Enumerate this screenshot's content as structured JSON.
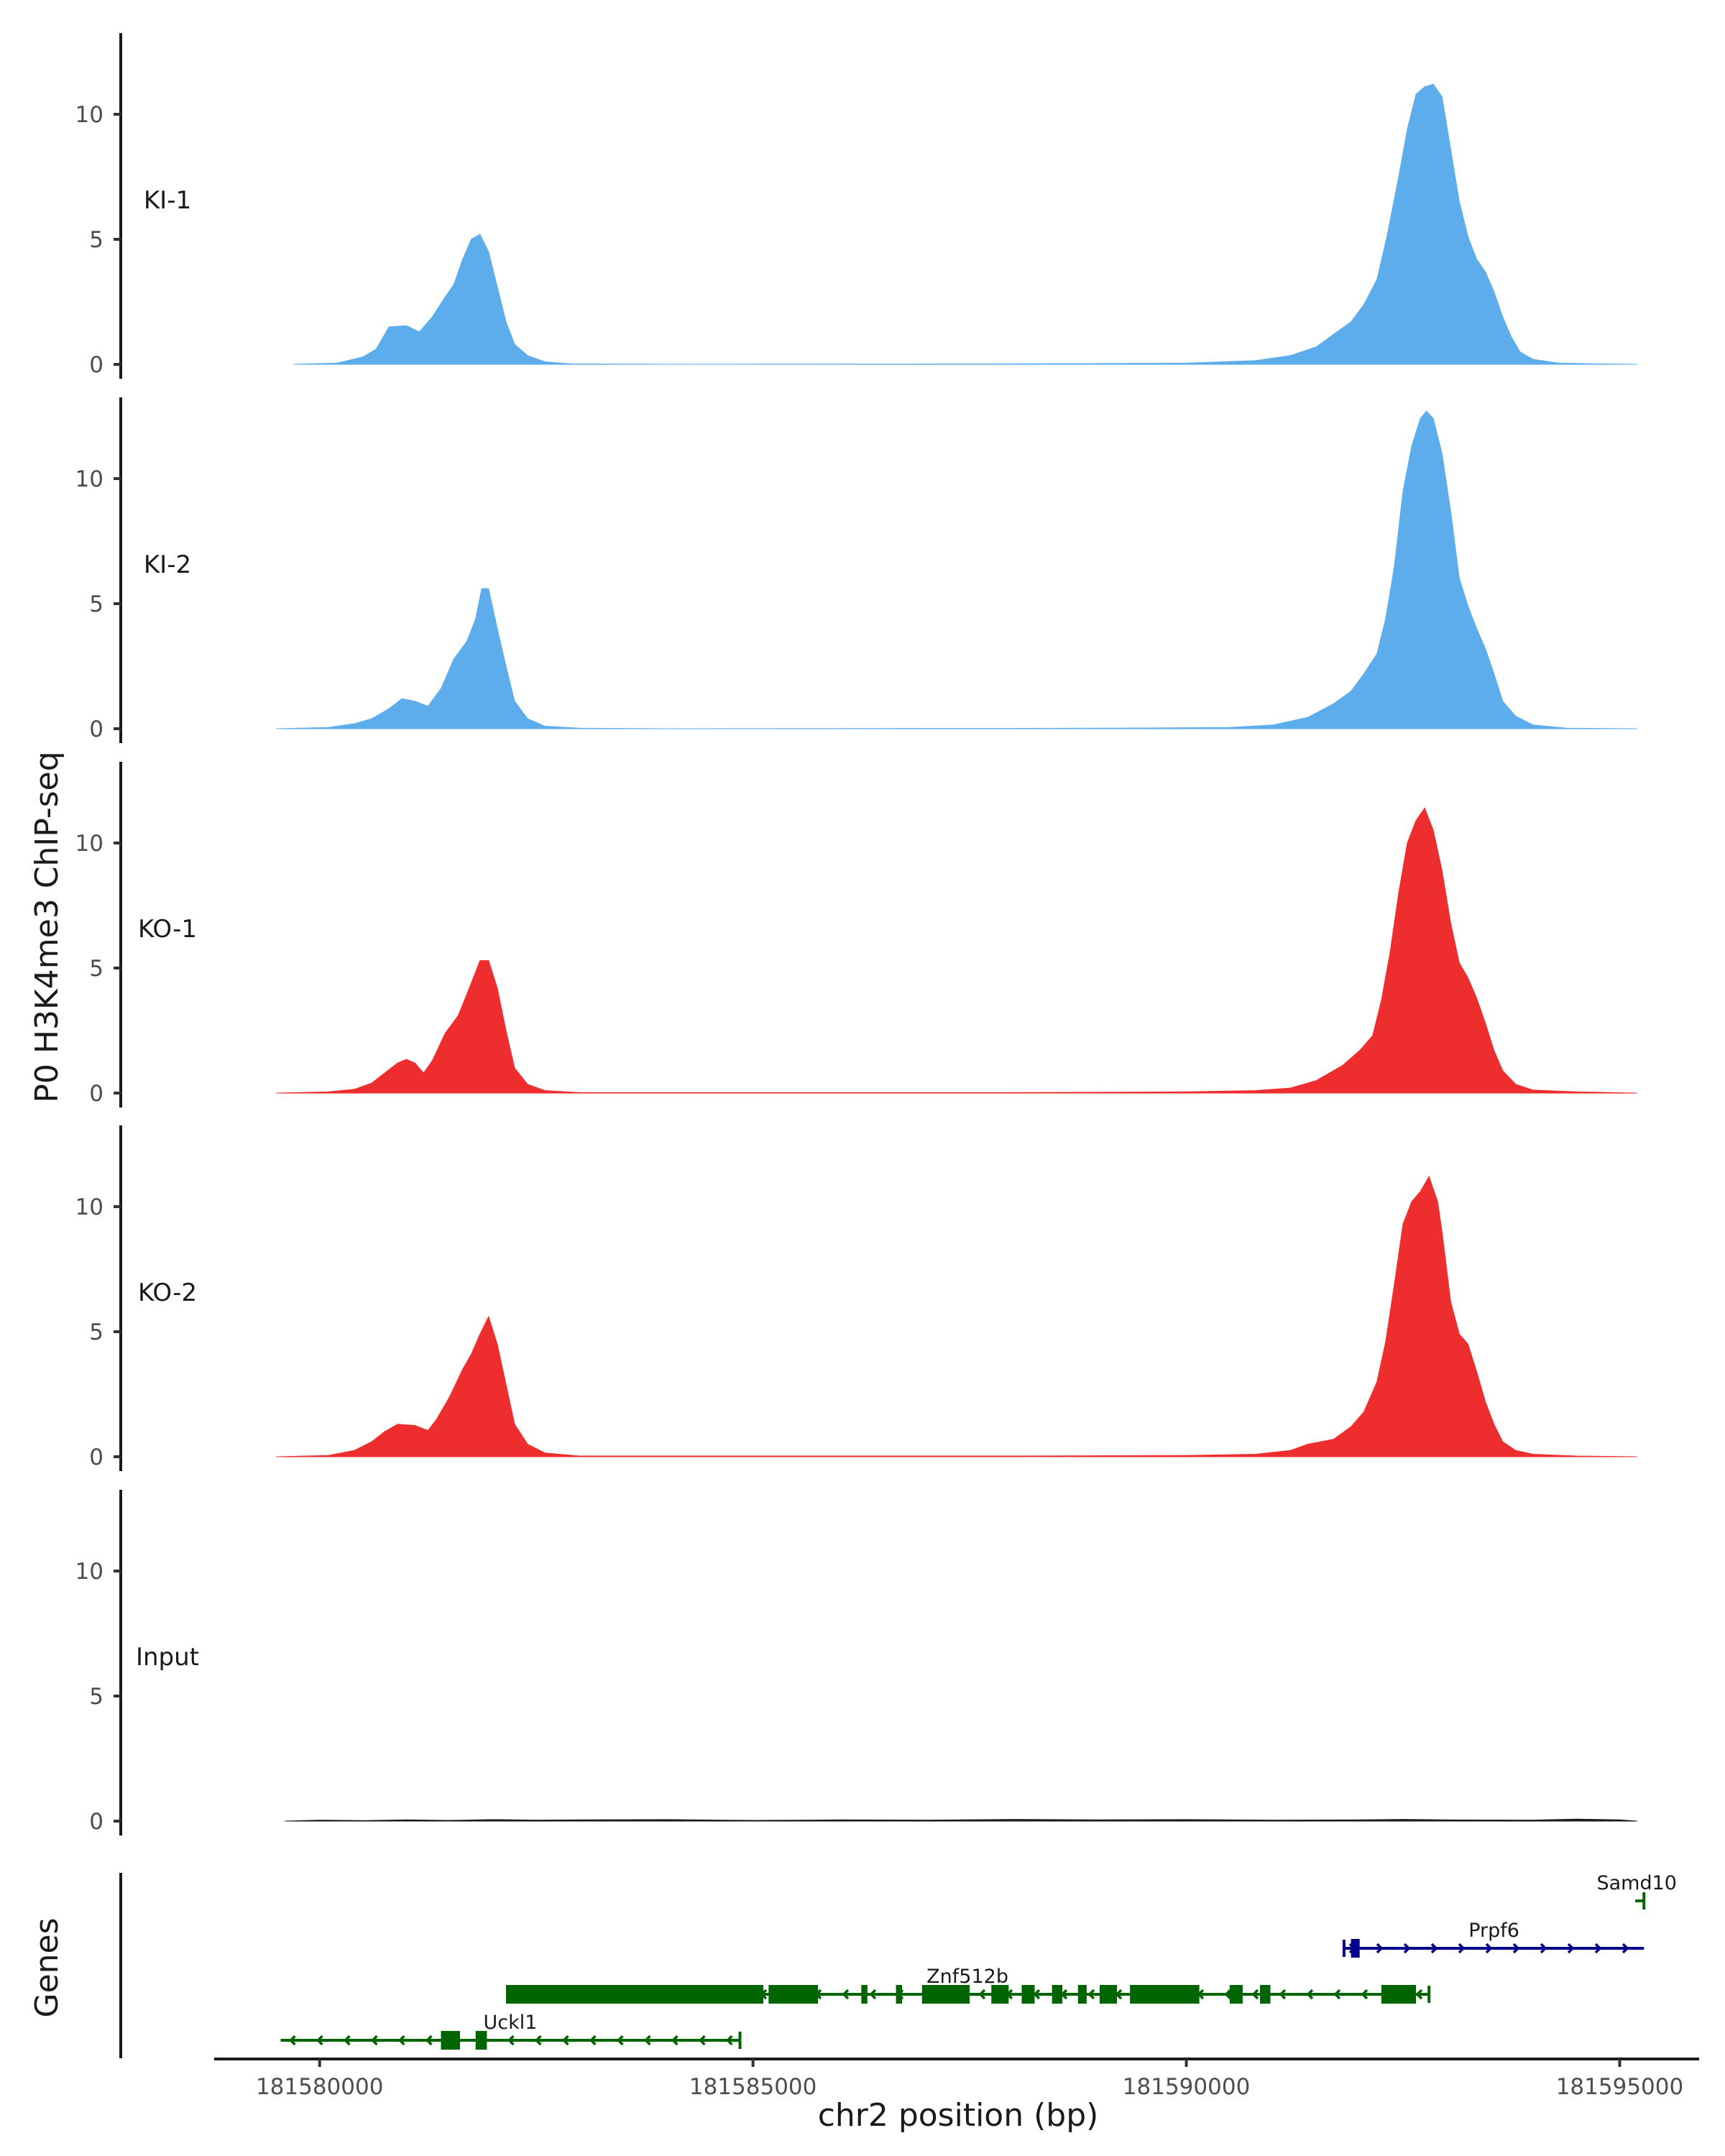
{
  "chart_data": {
    "type": "area",
    "chromosome": "chr2",
    "ylabel": "P0 H3K4me3 ChIP-seq",
    "xlabel": "chr2 position (bp)",
    "genes_label": "Genes",
    "xlim": [
      181578800,
      181595900
    ],
    "ylim": [
      0,
      13.3
    ],
    "yticks": [
      0,
      5,
      10
    ],
    "xticks": [
      181580000,
      181585000,
      181590000,
      181595000
    ],
    "tracks": [
      {
        "name": "KI-1",
        "color": "#5daded",
        "points": [
          [
            181579700,
            0
          ],
          [
            181580200,
            0.05
          ],
          [
            181580500,
            0.3
          ],
          [
            181580650,
            0.6
          ],
          [
            181580800,
            1.5
          ],
          [
            181581000,
            1.55
          ],
          [
            181581150,
            1.3
          ],
          [
            181581300,
            1.9
          ],
          [
            181581450,
            2.7
          ],
          [
            181581550,
            3.2
          ],
          [
            181581650,
            4.2
          ],
          [
            181581750,
            5.0
          ],
          [
            181581850,
            5.2
          ],
          [
            181581950,
            4.5
          ],
          [
            181582050,
            3.1
          ],
          [
            181582150,
            1.7
          ],
          [
            181582250,
            0.8
          ],
          [
            181582400,
            0.35
          ],
          [
            181582600,
            0.1
          ],
          [
            181582900,
            0.02
          ],
          [
            181584000,
            0
          ],
          [
            181588000,
            0.02
          ],
          [
            181590000,
            0.05
          ],
          [
            181590800,
            0.15
          ],
          [
            181591200,
            0.35
          ],
          [
            181591500,
            0.7
          ],
          [
            181591700,
            1.2
          ],
          [
            181591900,
            1.7
          ],
          [
            181592050,
            2.4
          ],
          [
            181592200,
            3.4
          ],
          [
            181592320,
            5.2
          ],
          [
            181592450,
            7.5
          ],
          [
            181592550,
            9.4
          ],
          [
            181592650,
            10.8
          ],
          [
            181592750,
            11.1
          ],
          [
            181592850,
            11.2
          ],
          [
            181592950,
            10.7
          ],
          [
            181593050,
            8.6
          ],
          [
            181593150,
            6.5
          ],
          [
            181593250,
            5.1
          ],
          [
            181593350,
            4.2
          ],
          [
            181593450,
            3.7
          ],
          [
            181593550,
            2.9
          ],
          [
            181593650,
            1.9
          ],
          [
            181593750,
            1.1
          ],
          [
            181593850,
            0.5
          ],
          [
            181594000,
            0.2
          ],
          [
            181594300,
            0.05
          ],
          [
            181594700,
            0.02
          ],
          [
            181595200,
            0
          ]
        ]
      },
      {
        "name": "KI-2",
        "color": "#5daded",
        "points": [
          [
            181579500,
            0
          ],
          [
            181580100,
            0.05
          ],
          [
            181580400,
            0.2
          ],
          [
            181580600,
            0.4
          ],
          [
            181580800,
            0.8
          ],
          [
            181580950,
            1.2
          ],
          [
            181581100,
            1.1
          ],
          [
            181581250,
            0.9
          ],
          [
            181581400,
            1.6
          ],
          [
            181581550,
            2.8
          ],
          [
            181581700,
            3.5
          ],
          [
            181581800,
            4.4
          ],
          [
            181581870,
            5.6
          ],
          [
            181581950,
            5.6
          ],
          [
            181582050,
            4.0
          ],
          [
            181582150,
            2.5
          ],
          [
            181582250,
            1.1
          ],
          [
            181582400,
            0.4
          ],
          [
            181582600,
            0.1
          ],
          [
            181583000,
            0.02
          ],
          [
            181584000,
            0
          ],
          [
            181589000,
            0.02
          ],
          [
            181590500,
            0.05
          ],
          [
            181591000,
            0.15
          ],
          [
            181591400,
            0.45
          ],
          [
            181591700,
            1.0
          ],
          [
            181591900,
            1.5
          ],
          [
            181592050,
            2.2
          ],
          [
            181592200,
            3.0
          ],
          [
            181592300,
            4.4
          ],
          [
            181592400,
            6.5
          ],
          [
            181592500,
            9.5
          ],
          [
            181592600,
            11.3
          ],
          [
            181592700,
            12.4
          ],
          [
            181592770,
            12.7
          ],
          [
            181592850,
            12.4
          ],
          [
            181592950,
            11.0
          ],
          [
            181593050,
            8.7
          ],
          [
            181593150,
            6.0
          ],
          [
            181593250,
            4.9
          ],
          [
            181593350,
            4.0
          ],
          [
            181593450,
            3.2
          ],
          [
            181593550,
            2.2
          ],
          [
            181593650,
            1.1
          ],
          [
            181593800,
            0.5
          ],
          [
            181594000,
            0.15
          ],
          [
            181594400,
            0.02
          ],
          [
            181595200,
            0
          ]
        ]
      },
      {
        "name": "KO-1",
        "color": "#ee2e2e",
        "points": [
          [
            181579500,
            0
          ],
          [
            181580100,
            0.05
          ],
          [
            181580400,
            0.15
          ],
          [
            181580600,
            0.4
          ],
          [
            181580750,
            0.8
          ],
          [
            181580900,
            1.2
          ],
          [
            181581000,
            1.35
          ],
          [
            181581100,
            1.2
          ],
          [
            181581200,
            0.8
          ],
          [
            181581300,
            1.3
          ],
          [
            181581450,
            2.4
          ],
          [
            181581600,
            3.1
          ],
          [
            181581750,
            4.4
          ],
          [
            181581850,
            5.3
          ],
          [
            181581950,
            5.3
          ],
          [
            181582050,
            4.2
          ],
          [
            181582150,
            2.5
          ],
          [
            181582250,
            1.0
          ],
          [
            181582400,
            0.35
          ],
          [
            181582600,
            0.1
          ],
          [
            181583000,
            0.02
          ],
          [
            181585000,
            0.02
          ],
          [
            181588000,
            0.02
          ],
          [
            181590000,
            0.05
          ],
          [
            181590800,
            0.1
          ],
          [
            181591200,
            0.2
          ],
          [
            181591500,
            0.5
          ],
          [
            181591800,
            1.1
          ],
          [
            181592000,
            1.7
          ],
          [
            181592150,
            2.3
          ],
          [
            181592250,
            3.7
          ],
          [
            181592350,
            5.6
          ],
          [
            181592450,
            8.0
          ],
          [
            181592550,
            10.0
          ],
          [
            181592650,
            10.9
          ],
          [
            181592750,
            11.4
          ],
          [
            181592850,
            10.5
          ],
          [
            181592950,
            8.9
          ],
          [
            181593050,
            6.8
          ],
          [
            181593150,
            5.2
          ],
          [
            181593250,
            4.6
          ],
          [
            181593350,
            3.8
          ],
          [
            181593450,
            2.8
          ],
          [
            181593550,
            1.7
          ],
          [
            181593650,
            0.9
          ],
          [
            181593800,
            0.35
          ],
          [
            181594000,
            0.12
          ],
          [
            181594500,
            0.05
          ],
          [
            181595200,
            0
          ]
        ]
      },
      {
        "name": "KO-2",
        "color": "#ee2e2e",
        "points": [
          [
            181579500,
            0
          ],
          [
            181580100,
            0.05
          ],
          [
            181580400,
            0.25
          ],
          [
            181580600,
            0.6
          ],
          [
            181580750,
            1.0
          ],
          [
            181580900,
            1.3
          ],
          [
            181581100,
            1.25
          ],
          [
            181581250,
            1.05
          ],
          [
            181581350,
            1.5
          ],
          [
            181581500,
            2.4
          ],
          [
            181581650,
            3.5
          ],
          [
            181581750,
            4.1
          ],
          [
            181581850,
            4.9
          ],
          [
            181581950,
            5.6
          ],
          [
            181582050,
            4.5
          ],
          [
            181582150,
            2.9
          ],
          [
            181582250,
            1.3
          ],
          [
            181582400,
            0.5
          ],
          [
            181582600,
            0.15
          ],
          [
            181583000,
            0.03
          ],
          [
            181585000,
            0.03
          ],
          [
            181588000,
            0.03
          ],
          [
            181590000,
            0.05
          ],
          [
            181590800,
            0.1
          ],
          [
            181591200,
            0.25
          ],
          [
            181591400,
            0.5
          ],
          [
            181591700,
            0.7
          ],
          [
            181591900,
            1.2
          ],
          [
            181592050,
            1.8
          ],
          [
            181592200,
            3.0
          ],
          [
            181592300,
            4.6
          ],
          [
            181592400,
            6.9
          ],
          [
            181592500,
            9.3
          ],
          [
            181592600,
            10.2
          ],
          [
            181592700,
            10.6
          ],
          [
            181592800,
            11.2
          ],
          [
            181592900,
            10.2
          ],
          [
            181592950,
            9.0
          ],
          [
            181593050,
            6.2
          ],
          [
            181593150,
            4.9
          ],
          [
            181593250,
            4.5
          ],
          [
            181593350,
            3.4
          ],
          [
            181593450,
            2.2
          ],
          [
            181593550,
            1.3
          ],
          [
            181593650,
            0.6
          ],
          [
            181593800,
            0.25
          ],
          [
            181594000,
            0.1
          ],
          [
            181594500,
            0.03
          ],
          [
            181595200,
            0
          ]
        ]
      },
      {
        "name": "Input",
        "color": "#1a1a1a",
        "points": [
          [
            181579600,
            0
          ],
          [
            181580000,
            0.04
          ],
          [
            181580500,
            0.02
          ],
          [
            181581000,
            0.05
          ],
          [
            181581500,
            0.03
          ],
          [
            181582000,
            0.06
          ],
          [
            181582500,
            0.04
          ],
          [
            181583000,
            0.05
          ],
          [
            181584000,
            0.06
          ],
          [
            181585000,
            0.03
          ],
          [
            181586000,
            0.05
          ],
          [
            181587000,
            0.04
          ],
          [
            181588000,
            0.07
          ],
          [
            181589000,
            0.05
          ],
          [
            181590000,
            0.06
          ],
          [
            181591000,
            0.04
          ],
          [
            181592000,
            0.05
          ],
          [
            181592500,
            0.07
          ],
          [
            181593000,
            0.05
          ],
          [
            181594000,
            0.04
          ],
          [
            181594500,
            0.08
          ],
          [
            181595000,
            0.05
          ],
          [
            181595200,
            0
          ]
        ]
      }
    ],
    "genes": [
      {
        "name": "Samd10",
        "strand": "-",
        "color": "#006400",
        "row": 1,
        "start": 181595180,
        "end": 181595280,
        "exons": []
      },
      {
        "name": "Prpf6",
        "strand": "+",
        "color": "#00008b",
        "row": 2,
        "start": 181591820,
        "end": 181595280,
        "exons": [
          [
            181591900,
            181592000
          ]
        ]
      },
      {
        "name": "Znf512b",
        "strand": "-",
        "color": "#006400",
        "row": 3,
        "start": 181582150,
        "end": 181592800,
        "exons": [
          [
            181582150,
            181585120
          ],
          [
            181585180,
            181585750
          ],
          [
            181586250,
            181586320
          ],
          [
            181586650,
            181586720
          ],
          [
            181586950,
            181587500
          ],
          [
            181587750,
            181587950
          ],
          [
            181588100,
            181588250
          ],
          [
            181588450,
            181588570
          ],
          [
            181588750,
            181588850
          ],
          [
            181589000,
            181589200
          ],
          [
            181589350,
            181590150
          ],
          [
            181590500,
            181590650
          ],
          [
            181590850,
            181590970
          ],
          [
            181592250,
            181592650
          ]
        ]
      },
      {
        "name": "Uckl1",
        "strand": "-",
        "color": "#006400",
        "row": 4,
        "start": 181579550,
        "end": 181584850,
        "exons": [
          [
            181581400,
            181581620
          ],
          [
            181581800,
            181581930
          ]
        ]
      }
    ]
  }
}
